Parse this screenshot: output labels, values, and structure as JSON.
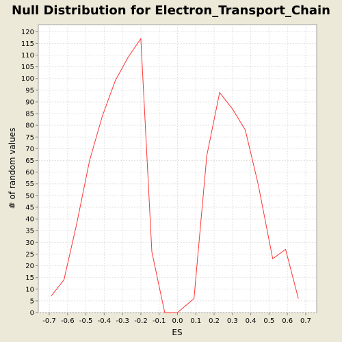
{
  "chart_data": {
    "type": "line",
    "title": "Null Distribution for Electron_Transport_Chain",
    "xlabel": "ES",
    "ylabel": "# of random values",
    "xlim": [
      -0.76,
      0.76
    ],
    "ylim": [
      0,
      123
    ],
    "xticks": [
      -0.7,
      -0.6,
      -0.5,
      -0.4,
      -0.3,
      -0.2,
      -0.1,
      0.0,
      0.1,
      0.2,
      0.3,
      0.4,
      0.5,
      0.6,
      0.7
    ],
    "xtick_labels": [
      "-0.7",
      "-0.6",
      "-0.5",
      "-0.4",
      "-0.3",
      "-0.2",
      "-0.1",
      "0.0",
      "0.1",
      "0.2",
      "0.3",
      "0.4",
      "0.5",
      "0.6",
      "0.7"
    ],
    "yticks": [
      0,
      5,
      10,
      15,
      20,
      25,
      30,
      35,
      40,
      45,
      50,
      55,
      60,
      65,
      70,
      75,
      80,
      85,
      90,
      95,
      100,
      105,
      110,
      115,
      120
    ],
    "grid": true,
    "series_color": "#ff3333",
    "series": [
      {
        "x": [
          -0.69,
          -0.62,
          -0.55,
          -0.48,
          -0.41,
          -0.34,
          -0.27,
          -0.2,
          -0.14,
          -0.07,
          0.0,
          0.09,
          0.16,
          0.23,
          0.3,
          0.37,
          0.44,
          0.52,
          0.59,
          0.66
        ],
        "y": [
          7,
          14,
          38,
          65,
          84,
          99,
          109,
          117,
          26,
          0,
          0,
          6,
          67,
          94,
          87,
          78,
          55,
          23,
          27,
          6
        ]
      }
    ]
  }
}
